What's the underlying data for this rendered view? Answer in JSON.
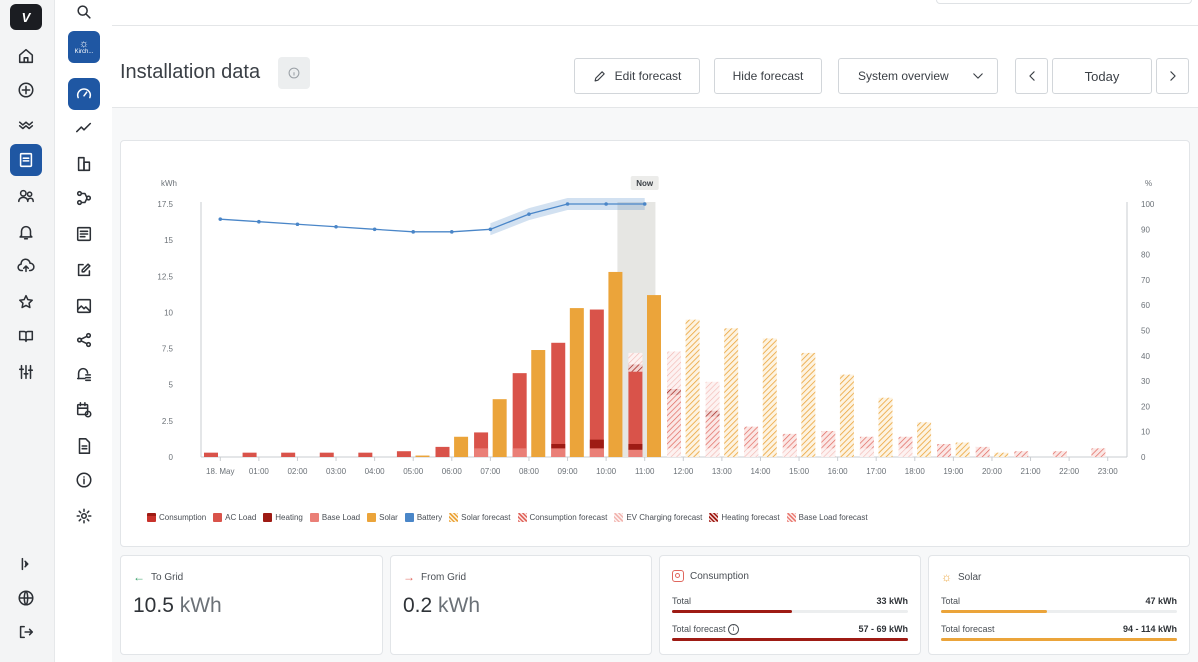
{
  "rail": {
    "items": [
      {
        "name": "home-icon"
      },
      {
        "name": "add-circle-icon"
      },
      {
        "name": "waves-icon"
      },
      {
        "name": "installation-icon"
      },
      {
        "name": "users-icon"
      },
      {
        "name": "bell-icon"
      },
      {
        "name": "cloud-upload-icon"
      },
      {
        "name": "star-icon"
      },
      {
        "name": "book-icon"
      },
      {
        "name": "sliders-icon"
      }
    ],
    "bottom": [
      {
        "name": "expand-icon"
      },
      {
        "name": "globe-icon"
      },
      {
        "name": "logout-icon"
      }
    ]
  },
  "site": {
    "short_name": "Kirch..."
  },
  "header": {
    "title": "Installation data",
    "edit_forecast": "Edit forecast",
    "hide_forecast": "Hide forecast",
    "view_select": "System overview",
    "today": "Today"
  },
  "chart_data": {
    "type": "bar",
    "now_label": "Now",
    "ylabel_left": "kWh",
    "ylabel_right": "%",
    "ylim_left": [
      0,
      17.5
    ],
    "ylim_right": [
      0,
      100
    ],
    "yticks_left": [
      "0",
      "2.5",
      "5",
      "7.5",
      "10",
      "12.5",
      "15",
      "17.5"
    ],
    "yticks_right": [
      "0",
      "10",
      "20",
      "30",
      "40",
      "50",
      "60",
      "70",
      "80",
      "90",
      "100"
    ],
    "categories": [
      "18. May",
      "01:00",
      "02:00",
      "03:00",
      "04:00",
      "05:00",
      "06:00",
      "07:00",
      "08:00",
      "09:00",
      "10:00",
      "11:00",
      "12:00",
      "13:00",
      "14:00",
      "15:00",
      "16:00",
      "17:00",
      "18:00",
      "19:00",
      "20:00",
      "21:00",
      "22:00",
      "23:00"
    ],
    "now_index": 11,
    "series": [
      {
        "name": "Consumption",
        "values": [
          0.3,
          0.3,
          0.3,
          0.3,
          0.3,
          0.4,
          0.7,
          1.7,
          5.8,
          7.9,
          10.2,
          6.4,
          4.7,
          3.2,
          2.1,
          1.6,
          1.8,
          1.4,
          1.4,
          0.9,
          0.7,
          0.4,
          0.4,
          0.6
        ]
      },
      {
        "name": "Solar",
        "values": [
          0,
          0,
          0,
          0,
          0,
          0.1,
          1.4,
          4.0,
          7.4,
          10.3,
          12.8,
          11.2,
          9.5,
          8.9,
          8.2,
          7.2,
          5.7,
          4.1,
          2.4,
          1.0,
          0.3,
          0,
          0,
          0
        ]
      },
      {
        "name": "Battery",
        "values": [
          94,
          93,
          92,
          91,
          90,
          89,
          89,
          90,
          96,
          100,
          100,
          100,
          null,
          null,
          null,
          null,
          null,
          null,
          null,
          null,
          null,
          null,
          null,
          null
        ]
      }
    ],
    "legend": [
      "Consumption",
      "AC Load",
      "Heating",
      "Base Load",
      "Solar",
      "Battery",
      "Solar forecast",
      "Consumption forecast",
      "EV Charging forecast",
      "Heating forecast",
      "Base Load forecast"
    ]
  },
  "stats": {
    "to_grid": {
      "label": "To Grid",
      "value": "10.5",
      "unit": "kWh"
    },
    "from_grid": {
      "label": "From Grid",
      "value": "0.2",
      "unit": "kWh"
    },
    "consumption": {
      "label": "Consumption",
      "total_label": "Total",
      "total": "33 kWh",
      "total_fraction": 0.51,
      "forecast_label": "Total forecast",
      "forecast": "57 - 69 kWh",
      "forecast_fraction": 1.0
    },
    "solar": {
      "label": "Solar",
      "total_label": "Total",
      "total": "47 kWh",
      "total_fraction": 0.45,
      "forecast_label": "Total forecast",
      "forecast": "94 - 114 kWh",
      "forecast_fraction": 1.0
    }
  },
  "colors": {
    "accent": "#1f57a3",
    "consumption": "#c8322b",
    "ac_load": "#d9534a",
    "heating": "#9e1b14",
    "base_load": "#ea7f77",
    "solar": "#eba43a",
    "battery": "#4a86c8",
    "grid_green": "#38a169"
  }
}
